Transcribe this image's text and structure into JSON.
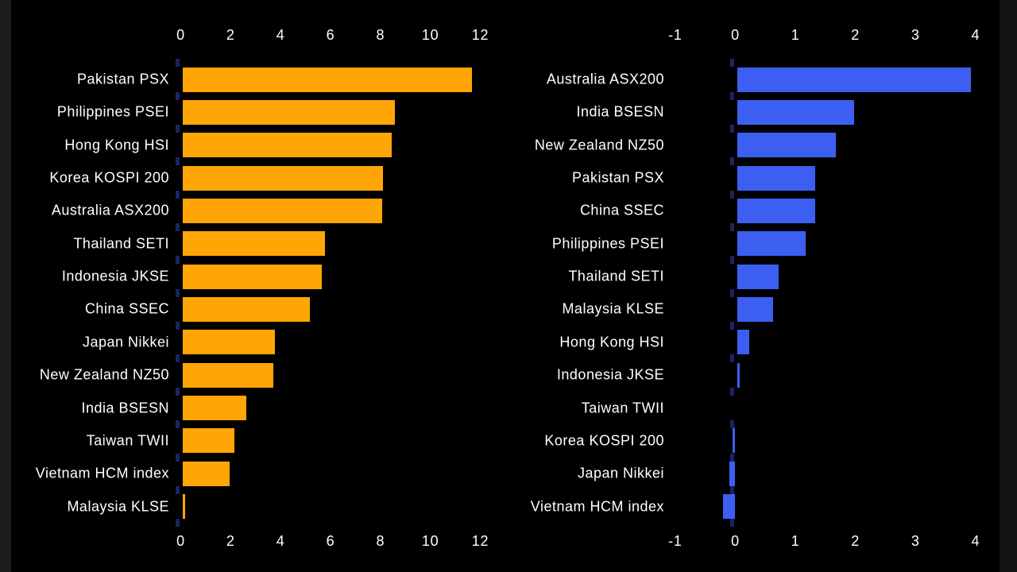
{
  "background_color": "#000000",
  "edge_strips": {
    "left_color": "#1c1c1c",
    "right_color": "#121212"
  },
  "chart_data": [
    {
      "type": "bar",
      "orientation": "horizontal",
      "title": "",
      "bar_color": "#ffa506",
      "axis_text_color": "#ffffff",
      "xticks": [
        0,
        2,
        4,
        6,
        8,
        10,
        12
      ],
      "xlim": [
        0,
        12.6
      ],
      "tick_positions": "top and bottom",
      "grid": false,
      "legend": null,
      "categories": [
        "Pakistan PSX",
        "Philippines PSEI",
        "Hong Kong HSI",
        "Korea KOSPI 200",
        "Australia ASX200",
        "Thailand SETI",
        "Indonesia JKSE",
        "China SSEC",
        "Japan Nikkei",
        "New Zealand NZ50",
        "India BSESN",
        "Taiwan TWII",
        "Vietnam HCM index",
        "Malaysia KLSE"
      ],
      "values": [
        11.6,
        8.5,
        8.4,
        8.05,
        8.0,
        5.7,
        5.6,
        5.1,
        3.7,
        3.65,
        2.55,
        2.1,
        1.9,
        0.1
      ]
    },
    {
      "type": "bar",
      "orientation": "horizontal",
      "title": "",
      "bar_color": "#3c5ff2",
      "axis_text_color": "#ffffff",
      "xticks": [
        -1,
        0,
        1,
        2,
        3,
        4
      ],
      "xlim": [
        -1.05,
        4.1
      ],
      "tick_positions": "top and bottom",
      "grid": false,
      "legend": null,
      "categories": [
        "Australia ASX200",
        "India BSESN",
        "New Zealand NZ50",
        "Pakistan PSX",
        "China SSEC",
        "Philippines PSEI",
        "Thailand SETI",
        "Malaysia KLSE",
        "Hong Kong HSI",
        "Indonesia JKSE",
        "Taiwan TWII",
        "Korea KOSPI 200",
        "Japan Nikkei",
        "Vietnam HCM index"
      ],
      "values": [
        3.9,
        1.95,
        1.65,
        1.3,
        1.3,
        1.15,
        0.7,
        0.6,
        0.2,
        0.05,
        0.0,
        -0.05,
        -0.1,
        -0.2
      ]
    }
  ]
}
